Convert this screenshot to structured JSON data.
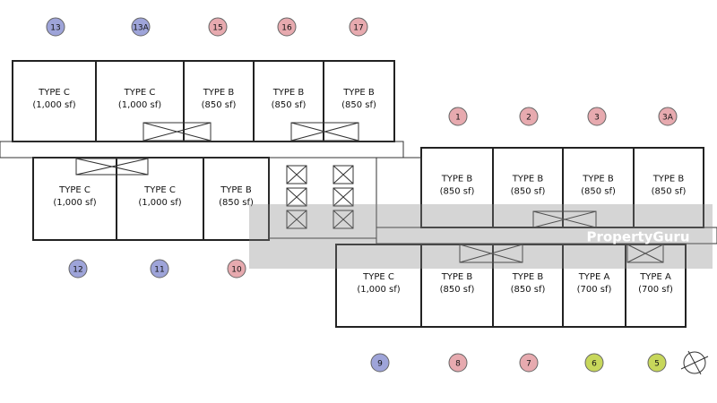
{
  "units": [
    {
      "number": "13",
      "type": "TYPE C",
      "area": "(1,000 sf)"
    },
    {
      "number": "13A",
      "type": "TYPE C",
      "area": "(1,000 sf)"
    },
    {
      "number": "15",
      "type": "TYPE B",
      "area": "(850 sf)"
    },
    {
      "number": "16",
      "type": "TYPE B",
      "area": "(850 sf)"
    },
    {
      "number": "17",
      "type": "TYPE B",
      "area": "(850 sf)"
    },
    {
      "number": "12",
      "type": "TYPE C",
      "area": "(1,000 sf)"
    },
    {
      "number": "11",
      "type": "TYPE C",
      "area": "(1,000 sf)"
    },
    {
      "number": "10",
      "type": "TYPE B",
      "area": "(850 sf)"
    },
    {
      "number": "1",
      "type": "TYPE B",
      "area": "(850 sf)"
    },
    {
      "number": "2",
      "type": "TYPE B",
      "area": "(850 sf)"
    },
    {
      "number": "3",
      "type": "TYPE B",
      "area": "(850 sf)"
    },
    {
      "number": "3A",
      "type": "TYPE B",
      "area": "(850 sf)"
    },
    {
      "number": "9",
      "type": "TYPE C",
      "area": "(1,000 sf)"
    },
    {
      "number": "8",
      "type": "TYPE B",
      "area": "(850 sf)"
    },
    {
      "number": "7",
      "type": "TYPE B",
      "area": "(850 sf)"
    },
    {
      "number": "6",
      "type": "TYPE A",
      "area": "(700 sf)"
    },
    {
      "number": "5",
      "type": "TYPE A",
      "area": "(700 sf)"
    }
  ],
  "watermark": "PropertyGuru"
}
